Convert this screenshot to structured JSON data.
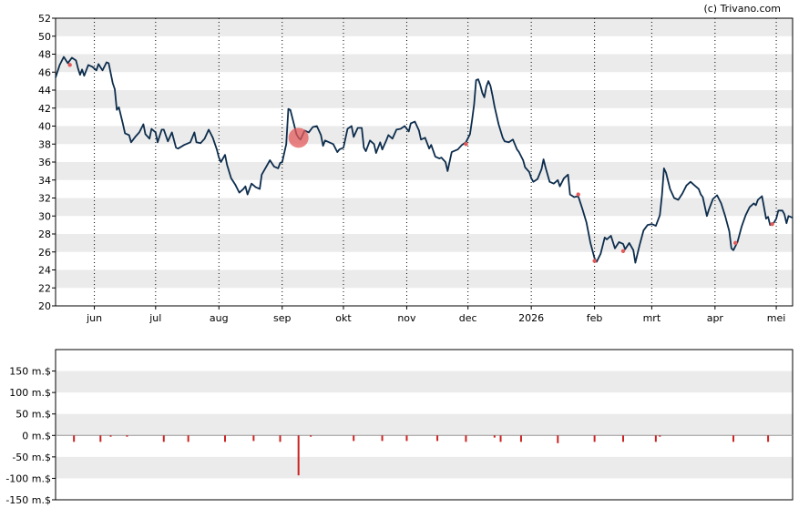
{
  "credit": "(c) Trivano.com",
  "chart_data": [
    {
      "type": "line",
      "name": "price",
      "ylim": [
        20,
        52
      ],
      "y_ticks": [
        20,
        22,
        24,
        26,
        28,
        30,
        32,
        34,
        36,
        38,
        40,
        42,
        44,
        46,
        48,
        50,
        52
      ],
      "x_range": [
        "2025-05-13",
        "2026-05-09"
      ],
      "x_ticks": [
        {
          "label": "jun",
          "date": "2025-06-01"
        },
        {
          "label": "jul",
          "date": "2025-07-01"
        },
        {
          "label": "aug",
          "date": "2025-08-01"
        },
        {
          "label": "sep",
          "date": "2025-09-01"
        },
        {
          "label": "okt",
          "date": "2025-10-01"
        },
        {
          "label": "nov",
          "date": "2025-11-01"
        },
        {
          "label": "dec",
          "date": "2025-12-01"
        },
        {
          "label": "2026",
          "date": "2026-01-01"
        },
        {
          "label": "feb",
          "date": "2026-02-01"
        },
        {
          "label": "mrt",
          "date": "2026-03-01"
        },
        {
          "label": "apr",
          "date": "2026-04-01"
        },
        {
          "label": "mei",
          "date": "2026-05-01"
        }
      ],
      "grid": "alternating horizontal bands, dotted vertical month lines",
      "line_color": "#0d2d4d",
      "points": [
        [
          "2025-05-13",
          45.4
        ],
        [
          "2025-05-15",
          46.8
        ],
        [
          "2025-05-17",
          47.7
        ],
        [
          "2025-05-19",
          47.0
        ],
        [
          "2025-05-21",
          47.6
        ],
        [
          "2025-05-23",
          47.3
        ],
        [
          "2025-05-24",
          46.4
        ],
        [
          "2025-05-25",
          45.7
        ],
        [
          "2025-05-26",
          46.3
        ],
        [
          "2025-05-27",
          45.6
        ],
        [
          "2025-05-29",
          46.8
        ],
        [
          "2025-05-31",
          46.6
        ],
        [
          "2025-06-02",
          46.2
        ],
        [
          "2025-06-03",
          46.9
        ],
        [
          "2025-06-05",
          46.2
        ],
        [
          "2025-06-07",
          47.1
        ],
        [
          "2025-06-08",
          47.0
        ],
        [
          "2025-06-10",
          44.8
        ],
        [
          "2025-06-11",
          44.1
        ],
        [
          "2025-06-12",
          41.8
        ],
        [
          "2025-06-13",
          42.1
        ],
        [
          "2025-06-15",
          40.2
        ],
        [
          "2025-06-16",
          39.2
        ],
        [
          "2025-06-18",
          39.0
        ],
        [
          "2025-06-19",
          38.2
        ],
        [
          "2025-06-21",
          38.8
        ],
        [
          "2025-06-23",
          39.3
        ],
        [
          "2025-06-25",
          40.2
        ],
        [
          "2025-06-26",
          39.1
        ],
        [
          "2025-06-28",
          38.6
        ],
        [
          "2025-06-29",
          39.7
        ],
        [
          "2025-07-01",
          39.3
        ],
        [
          "2025-07-02",
          38.2
        ],
        [
          "2025-07-04",
          39.6
        ],
        [
          "2025-07-05",
          39.6
        ],
        [
          "2025-07-07",
          38.3
        ],
        [
          "2025-07-09",
          39.3
        ],
        [
          "2025-07-11",
          37.6
        ],
        [
          "2025-07-12",
          37.5
        ],
        [
          "2025-07-15",
          37.9
        ],
        [
          "2025-07-18",
          38.2
        ],
        [
          "2025-07-20",
          39.3
        ],
        [
          "2025-07-21",
          38.2
        ],
        [
          "2025-07-23",
          38.1
        ],
        [
          "2025-07-25",
          38.6
        ],
        [
          "2025-07-27",
          39.6
        ],
        [
          "2025-07-29",
          38.7
        ],
        [
          "2025-07-31",
          37.4
        ],
        [
          "2025-08-01",
          36.5
        ],
        [
          "2025-08-02",
          36.0
        ],
        [
          "2025-08-04",
          36.8
        ],
        [
          "2025-08-05",
          35.7
        ],
        [
          "2025-08-07",
          34.2
        ],
        [
          "2025-08-09",
          33.5
        ],
        [
          "2025-08-11",
          32.6
        ],
        [
          "2025-08-13",
          33.0
        ],
        [
          "2025-08-14",
          33.3
        ],
        [
          "2025-08-15",
          32.4
        ],
        [
          "2025-08-17",
          33.6
        ],
        [
          "2025-08-19",
          33.2
        ],
        [
          "2025-08-21",
          33.0
        ],
        [
          "2025-08-22",
          34.6
        ],
        [
          "2025-08-24",
          35.4
        ],
        [
          "2025-08-26",
          36.2
        ],
        [
          "2025-08-28",
          35.5
        ],
        [
          "2025-08-30",
          35.3
        ],
        [
          "2025-08-31",
          35.9
        ],
        [
          "2025-09-01",
          36.0
        ],
        [
          "2025-09-03",
          38.0
        ],
        [
          "2025-09-04",
          41.9
        ],
        [
          "2025-09-05",
          41.8
        ],
        [
          "2025-09-07",
          40.0
        ],
        [
          "2025-09-08",
          39.1
        ],
        [
          "2025-09-09",
          38.7
        ],
        [
          "2025-09-10",
          38.5
        ],
        [
          "2025-09-12",
          39.5
        ],
        [
          "2025-09-14",
          39.3
        ],
        [
          "2025-09-16",
          39.9
        ],
        [
          "2025-09-18",
          40.0
        ],
        [
          "2025-09-20",
          39.0
        ],
        [
          "2025-09-21",
          37.8
        ],
        [
          "2025-09-22",
          38.4
        ],
        [
          "2025-09-24",
          38.2
        ],
        [
          "2025-09-26",
          38.0
        ],
        [
          "2025-09-28",
          37.1
        ],
        [
          "2025-09-29",
          37.4
        ],
        [
          "2025-10-01",
          37.6
        ],
        [
          "2025-10-03",
          39.7
        ],
        [
          "2025-10-05",
          40.0
        ],
        [
          "2025-10-06",
          38.8
        ],
        [
          "2025-10-08",
          39.8
        ],
        [
          "2025-10-10",
          39.8
        ],
        [
          "2025-10-11",
          37.6
        ],
        [
          "2025-10-12",
          37.2
        ],
        [
          "2025-10-14",
          38.4
        ],
        [
          "2025-10-16",
          38.0
        ],
        [
          "2025-10-17",
          37.0
        ],
        [
          "2025-10-19",
          38.2
        ],
        [
          "2025-10-20",
          37.4
        ],
        [
          "2025-10-22",
          38.4
        ],
        [
          "2025-10-23",
          39.0
        ],
        [
          "2025-10-25",
          38.6
        ],
        [
          "2025-10-27",
          39.6
        ],
        [
          "2025-10-29",
          39.7
        ],
        [
          "2025-10-31",
          40.0
        ],
        [
          "2025-11-02",
          39.4
        ],
        [
          "2025-11-03",
          40.3
        ],
        [
          "2025-11-05",
          40.5
        ],
        [
          "2025-11-07",
          39.5
        ],
        [
          "2025-11-08",
          38.5
        ],
        [
          "2025-11-10",
          38.7
        ],
        [
          "2025-11-12",
          37.5
        ],
        [
          "2025-11-13",
          37.9
        ],
        [
          "2025-11-15",
          36.6
        ],
        [
          "2025-11-17",
          36.4
        ],
        [
          "2025-11-18",
          36.5
        ],
        [
          "2025-11-20",
          36.0
        ],
        [
          "2025-11-21",
          35.0
        ],
        [
          "2025-11-23",
          37.1
        ],
        [
          "2025-11-24",
          37.2
        ],
        [
          "2025-11-26",
          37.4
        ],
        [
          "2025-11-28",
          37.9
        ],
        [
          "2025-11-30",
          38.2
        ],
        [
          "2025-12-02",
          39.1
        ],
        [
          "2025-12-03",
          40.7
        ],
        [
          "2025-12-04",
          42.4
        ],
        [
          "2025-12-05",
          45.1
        ],
        [
          "2025-12-06",
          45.2
        ],
        [
          "2025-12-07",
          44.6
        ],
        [
          "2025-12-08",
          43.7
        ],
        [
          "2025-12-09",
          43.2
        ],
        [
          "2025-12-10",
          44.4
        ],
        [
          "2025-12-11",
          45.0
        ],
        [
          "2025-12-12",
          44.5
        ],
        [
          "2025-12-13",
          43.4
        ],
        [
          "2025-12-14",
          42.2
        ],
        [
          "2025-12-16",
          40.2
        ],
        [
          "2025-12-18",
          38.7
        ],
        [
          "2025-12-19",
          38.3
        ],
        [
          "2025-12-21",
          38.2
        ],
        [
          "2025-12-23",
          38.5
        ],
        [
          "2025-12-25",
          37.4
        ],
        [
          "2025-12-26",
          37.1
        ],
        [
          "2025-12-28",
          36.2
        ],
        [
          "2025-12-29",
          35.4
        ],
        [
          "2025-12-31",
          34.9
        ],
        [
          "2026-01-01",
          34.2
        ],
        [
          "2026-01-02",
          33.8
        ],
        [
          "2026-01-04",
          34.1
        ],
        [
          "2026-01-06",
          35.2
        ],
        [
          "2026-01-07",
          36.3
        ],
        [
          "2026-01-08",
          35.4
        ],
        [
          "2026-01-10",
          33.8
        ],
        [
          "2026-01-12",
          33.6
        ],
        [
          "2026-01-14",
          34.0
        ],
        [
          "2026-01-15",
          33.3
        ],
        [
          "2026-01-17",
          34.2
        ],
        [
          "2026-01-19",
          34.6
        ],
        [
          "2026-01-20",
          32.4
        ],
        [
          "2026-01-22",
          32.1
        ],
        [
          "2026-01-24",
          32.2
        ],
        [
          "2026-01-26",
          30.8
        ],
        [
          "2026-01-28",
          29.3
        ],
        [
          "2026-01-30",
          27.0
        ],
        [
          "2026-02-01",
          25.3
        ],
        [
          "2026-02-02",
          24.9
        ],
        [
          "2026-02-04",
          25.8
        ],
        [
          "2026-02-06",
          27.6
        ],
        [
          "2026-02-07",
          27.4
        ],
        [
          "2026-02-09",
          27.8
        ],
        [
          "2026-02-11",
          26.4
        ],
        [
          "2026-02-13",
          27.1
        ],
        [
          "2026-02-15",
          26.9
        ],
        [
          "2026-02-16",
          26.3
        ],
        [
          "2026-02-18",
          27.0
        ],
        [
          "2026-02-20",
          26.2
        ],
        [
          "2026-02-21",
          24.8
        ],
        [
          "2026-02-23",
          26.7
        ],
        [
          "2026-02-25",
          28.4
        ],
        [
          "2026-02-27",
          29.0
        ],
        [
          "2026-03-01",
          29.1
        ],
        [
          "2026-03-03",
          28.9
        ],
        [
          "2026-03-05",
          30.1
        ],
        [
          "2026-03-06",
          32.3
        ],
        [
          "2026-03-07",
          35.3
        ],
        [
          "2026-03-08",
          34.8
        ],
        [
          "2026-03-10",
          33.0
        ],
        [
          "2026-03-12",
          32.0
        ],
        [
          "2026-03-14",
          31.8
        ],
        [
          "2026-03-16",
          32.5
        ],
        [
          "2026-03-18",
          33.4
        ],
        [
          "2026-03-20",
          33.8
        ],
        [
          "2026-03-22",
          33.4
        ],
        [
          "2026-03-24",
          33.0
        ],
        [
          "2026-03-25",
          32.4
        ],
        [
          "2026-03-26",
          32.1
        ],
        [
          "2026-03-28",
          30.0
        ],
        [
          "2026-03-29",
          30.7
        ],
        [
          "2026-03-31",
          31.9
        ],
        [
          "2026-04-02",
          32.3
        ],
        [
          "2026-04-04",
          31.4
        ],
        [
          "2026-04-06",
          30.0
        ],
        [
          "2026-04-08",
          28.3
        ],
        [
          "2026-04-09",
          26.4
        ],
        [
          "2026-04-10",
          26.2
        ],
        [
          "2026-04-12",
          27.1
        ],
        [
          "2026-04-14",
          28.8
        ],
        [
          "2026-04-16",
          30.1
        ],
        [
          "2026-04-18",
          31.0
        ],
        [
          "2026-04-20",
          31.4
        ],
        [
          "2026-04-21",
          31.2
        ],
        [
          "2026-04-22",
          31.8
        ],
        [
          "2026-04-24",
          32.2
        ],
        [
          "2026-04-25",
          31.0
        ],
        [
          "2026-04-26",
          29.7
        ],
        [
          "2026-04-27",
          29.9
        ],
        [
          "2026-04-28",
          29.0
        ],
        [
          "2026-04-30",
          29.3
        ],
        [
          "2026-05-01",
          29.7
        ],
        [
          "2026-05-02",
          30.6
        ],
        [
          "2026-05-04",
          30.6
        ],
        [
          "2026-05-05",
          30.2
        ],
        [
          "2026-05-06",
          29.2
        ],
        [
          "2026-05-07",
          30.0
        ],
        [
          "2026-05-09",
          29.8
        ]
      ],
      "markers": [
        {
          "date": "2025-05-20",
          "value": 46.8,
          "color": "#e35a5a",
          "size": "small"
        },
        {
          "date": "2025-09-09",
          "value": 38.7,
          "color": "#e35a5a",
          "size": "large"
        },
        {
          "date": "2025-11-30",
          "value": 38.0,
          "color": "#e35a5a",
          "size": "small"
        },
        {
          "date": "2026-01-24",
          "value": 32.4,
          "color": "#e35a5a",
          "size": "small"
        },
        {
          "date": "2026-02-01",
          "value": 25.0,
          "color": "#e35a5a",
          "size": "small"
        },
        {
          "date": "2026-02-15",
          "value": 26.1,
          "color": "#e35a5a",
          "size": "small"
        },
        {
          "date": "2026-04-11",
          "value": 27.0,
          "color": "#e35a5a",
          "size": "small"
        },
        {
          "date": "2026-04-29",
          "value": 29.1,
          "color": "#e35a5a",
          "size": "small"
        }
      ]
    },
    {
      "type": "bar",
      "name": "flows",
      "ylim": [
        -150,
        200
      ],
      "y_ticks": [
        {
          "value": -150,
          "label": "-150 m.$"
        },
        {
          "value": -100,
          "label": "-100 m.$"
        },
        {
          "value": -50,
          "label": "-50 m.$"
        },
        {
          "value": 0,
          "label": "0 m.$"
        },
        {
          "value": 50,
          "label": "50 m.$"
        },
        {
          "value": 100,
          "label": "100 m.$"
        },
        {
          "value": 150,
          "label": "150 m.$"
        }
      ],
      "bar_color": "#cc2222",
      "bars": [
        [
          "2025-05-22",
          -15
        ],
        [
          "2025-06-04",
          -15
        ],
        [
          "2025-06-09",
          -3
        ],
        [
          "2025-06-17",
          -3
        ],
        [
          "2025-07-05",
          -15
        ],
        [
          "2025-07-17",
          -15
        ],
        [
          "2025-08-04",
          -15
        ],
        [
          "2025-08-18",
          -13
        ],
        [
          "2025-08-31",
          -15
        ],
        [
          "2025-09-09",
          -93
        ],
        [
          "2025-09-15",
          -3
        ],
        [
          "2025-10-06",
          -13
        ],
        [
          "2025-10-20",
          -13
        ],
        [
          "2025-11-01",
          -13
        ],
        [
          "2025-11-16",
          -13
        ],
        [
          "2025-11-30",
          -15
        ],
        [
          "2025-12-14",
          -5
        ],
        [
          "2025-12-17",
          -15
        ],
        [
          "2025-12-27",
          -15
        ],
        [
          "2026-01-14",
          -18
        ],
        [
          "2026-02-01",
          -15
        ],
        [
          "2026-02-15",
          -15
        ],
        [
          "2026-03-03",
          -15
        ],
        [
          "2026-03-05",
          -3
        ],
        [
          "2026-04-10",
          -15
        ],
        [
          "2026-04-27",
          -15
        ]
      ]
    }
  ]
}
